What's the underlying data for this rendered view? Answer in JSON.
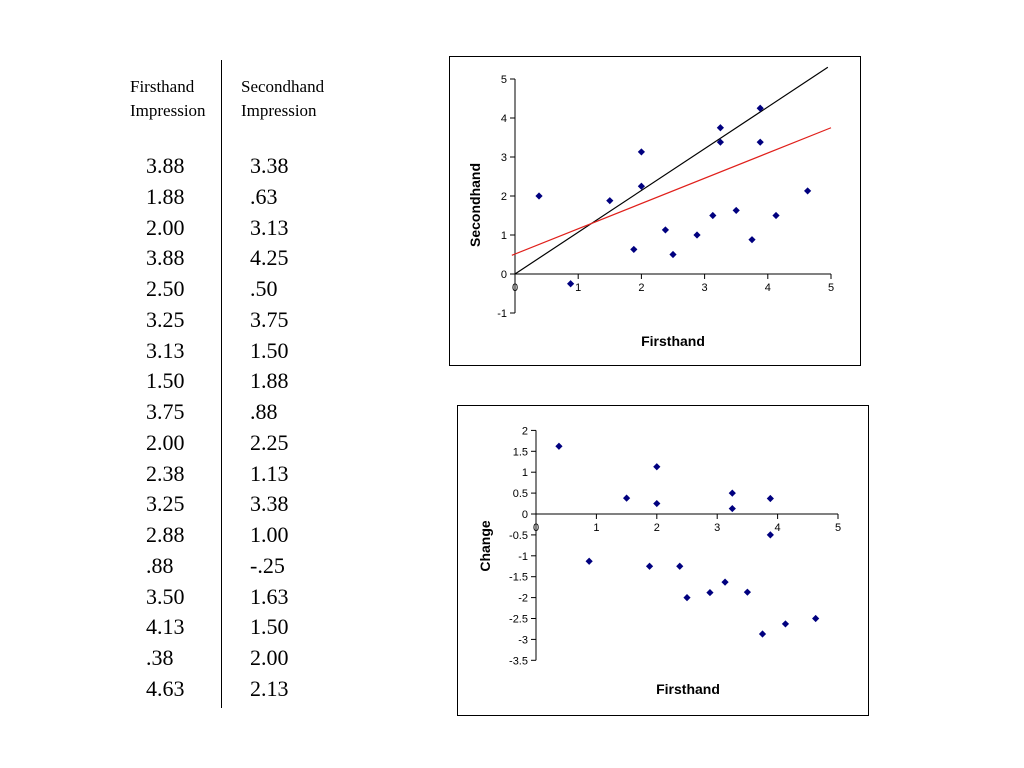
{
  "table": {
    "headers": {
      "firsthand": [
        "Firsthand",
        "Impression"
      ],
      "secondhand": [
        "Secondhand",
        "Impression"
      ]
    },
    "firsthand": [
      "3.88",
      "1.88",
      "2.00",
      "3.88",
      "2.50",
      "3.25",
      "3.13",
      "1.50",
      "3.75",
      "2.00",
      "2.38",
      "3.25",
      "2.88",
      ".88",
      "3.50",
      "4.13",
      ".38",
      "4.63"
    ],
    "secondhand": [
      "3.38",
      ".63",
      "3.13",
      "4.25",
      ".50",
      "3.75",
      "1.50",
      "1.88",
      ".88",
      "2.25",
      "1.13",
      "3.38",
      "1.00",
      "-.25",
      "1.63",
      "1.50",
      "2.00",
      "2.13"
    ]
  },
  "chart_data": [
    {
      "type": "scatter",
      "xlabel": "Firsthand",
      "ylabel": "Secondhand",
      "xlim": [
        0,
        5
      ],
      "ylim": [
        -1,
        5
      ],
      "xticks": [
        "0",
        "1",
        "2",
        "3",
        "4",
        "5"
      ],
      "yticks": [
        "-1",
        "0",
        "1",
        "2",
        "3",
        "4",
        "5"
      ],
      "points": [
        [
          3.88,
          3.38
        ],
        [
          1.88,
          0.63
        ],
        [
          2.0,
          3.13
        ],
        [
          3.88,
          4.25
        ],
        [
          2.5,
          0.5
        ],
        [
          3.25,
          3.75
        ],
        [
          3.13,
          1.5
        ],
        [
          1.5,
          1.88
        ],
        [
          3.75,
          0.88
        ],
        [
          2.0,
          2.25
        ],
        [
          2.38,
          1.13
        ],
        [
          3.25,
          3.38
        ],
        [
          2.88,
          1.0
        ],
        [
          0.88,
          -0.25
        ],
        [
          3.5,
          1.63
        ],
        [
          4.13,
          1.5
        ],
        [
          0.38,
          2.0
        ],
        [
          4.63,
          2.13
        ]
      ],
      "lines": [
        {
          "color": "#000000",
          "from": [
            0,
            0
          ],
          "to": [
            4.95,
            5.3
          ]
        },
        {
          "color": "#e0201b",
          "from": [
            -0.05,
            0.48
          ],
          "to": [
            5,
            3.75
          ]
        }
      ],
      "marker_color": "#00007f"
    },
    {
      "type": "scatter",
      "xlabel": "Firsthand",
      "ylabel": "Change",
      "xlim": [
        0,
        5
      ],
      "ylim": [
        -3.5,
        2
      ],
      "xticks": [
        "0",
        "1",
        "2",
        "3",
        "4",
        "5"
      ],
      "yticks": [
        "2",
        "1.5",
        "1",
        "0.5",
        "0",
        "-0.5",
        "-1",
        "-1.5",
        "-2",
        "-2.5",
        "-3",
        "-3.5"
      ],
      "points": [
        [
          0.38,
          1.62
        ],
        [
          0.88,
          -1.13
        ],
        [
          1.5,
          0.38
        ],
        [
          1.88,
          -1.25
        ],
        [
          2.0,
          1.13
        ],
        [
          2.0,
          0.25
        ],
        [
          2.38,
          -1.25
        ],
        [
          2.5,
          -2.0
        ],
        [
          2.88,
          -1.88
        ],
        [
          3.13,
          -1.63
        ],
        [
          3.25,
          0.5
        ],
        [
          3.25,
          0.13
        ],
        [
          3.5,
          -1.87
        ],
        [
          3.75,
          -2.87
        ],
        [
          3.88,
          -0.5
        ],
        [
          3.88,
          0.37
        ],
        [
          4.13,
          -2.63
        ],
        [
          4.63,
          -2.5
        ]
      ],
      "marker_color": "#00007f"
    }
  ]
}
